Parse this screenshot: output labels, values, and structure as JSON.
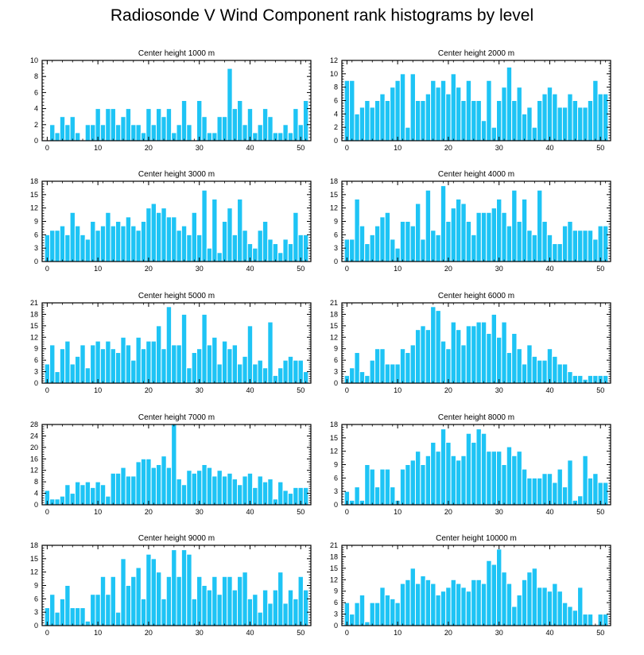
{
  "title": "Radiosonde V Wind Component rank histograms by level",
  "colors": {
    "bar": "#1ec4f5",
    "bar_edge": "#ffffff",
    "axis": "#000000"
  },
  "chart_data": [
    {
      "type": "bar",
      "title": "Center height 1000 m",
      "ylim": [
        0,
        10
      ],
      "yticks": [
        0,
        2,
        4,
        6,
        8,
        10
      ],
      "xlim": [
        -1,
        52
      ],
      "xticks": [
        0,
        10,
        20,
        30,
        40,
        50
      ],
      "x_start": 0,
      "values": [
        0,
        2,
        1,
        3,
        2,
        3,
        1,
        0,
        2,
        2,
        4,
        2,
        4,
        4,
        2,
        3,
        4,
        2,
        2,
        1,
        4,
        2,
        4,
        3,
        4,
        1,
        2,
        5,
        2,
        0,
        5,
        3,
        1,
        1,
        3,
        3,
        9,
        4,
        5,
        2,
        4,
        1,
        2,
        4,
        3,
        1,
        1,
        2,
        1,
        4,
        2,
        5
      ]
    },
    {
      "type": "bar",
      "title": "Center height 2000 m",
      "ylim": [
        0,
        12
      ],
      "yticks": [
        0,
        2,
        4,
        6,
        8,
        10,
        12
      ],
      "xlim": [
        -1,
        52
      ],
      "xticks": [
        0,
        10,
        20,
        30,
        40,
        50
      ],
      "x_start": 0,
      "values": [
        9,
        9,
        4,
        5,
        6,
        5,
        6,
        7,
        6,
        8,
        9,
        10,
        2,
        10,
        6,
        6,
        7,
        9,
        8,
        9,
        7,
        10,
        8,
        6,
        9,
        6,
        6,
        3,
        9,
        2,
        6,
        8,
        11,
        6,
        8,
        4,
        5,
        2,
        6,
        7,
        8,
        7,
        5,
        5,
        7,
        6,
        5,
        5,
        6,
        9,
        7,
        7
      ]
    },
    {
      "type": "bar",
      "title": "Center height 3000 m",
      "ylim": [
        0,
        18
      ],
      "yticks": [
        0,
        3,
        6,
        9,
        12,
        15,
        18
      ],
      "xlim": [
        -1,
        52
      ],
      "xticks": [
        0,
        10,
        20,
        30,
        40,
        50
      ],
      "x_start": 0,
      "values": [
        6,
        7,
        7,
        8,
        6,
        11,
        8,
        6,
        5,
        9,
        7,
        8,
        11,
        8,
        9,
        8,
        10,
        8,
        7,
        9,
        12,
        13,
        11,
        12,
        10,
        10,
        7,
        8,
        6,
        11,
        6,
        16,
        3,
        14,
        2,
        9,
        12,
        6,
        14,
        7,
        4,
        3,
        7,
        9,
        5,
        4,
        2,
        5,
        4,
        11,
        6,
        6
      ]
    },
    {
      "type": "bar",
      "title": "Center height 4000 m",
      "ylim": [
        0,
        18
      ],
      "yticks": [
        0,
        3,
        6,
        9,
        12,
        15,
        18
      ],
      "xlim": [
        -1,
        52
      ],
      "xticks": [
        0,
        10,
        20,
        30,
        40,
        50
      ],
      "x_start": 0,
      "values": [
        5,
        5,
        14,
        8,
        4,
        6,
        8,
        10,
        11,
        5,
        3,
        9,
        9,
        8,
        13,
        5,
        16,
        7,
        6,
        17,
        9,
        12,
        14,
        13,
        9,
        6,
        11,
        11,
        11,
        12,
        14,
        11,
        8,
        16,
        9,
        14,
        7,
        6,
        16,
        9,
        6,
        4,
        4,
        8,
        9,
        7,
        7,
        7,
        7,
        5,
        8,
        8
      ]
    },
    {
      "type": "bar",
      "title": "Center height 5000 m",
      "ylim": [
        0,
        21
      ],
      "yticks": [
        0,
        3,
        6,
        9,
        12,
        15,
        18,
        21
      ],
      "xlim": [
        -1,
        52
      ],
      "xticks": [
        0,
        10,
        20,
        30,
        40,
        50
      ],
      "x_start": 0,
      "values": [
        5,
        10,
        3,
        9,
        11,
        5,
        7,
        10,
        4,
        10,
        11,
        9,
        11,
        9,
        8,
        12,
        10,
        6,
        12,
        9,
        11,
        11,
        15,
        9,
        20,
        10,
        10,
        18,
        4,
        8,
        9,
        18,
        10,
        12,
        5,
        11,
        9,
        10,
        5,
        7,
        15,
        5,
        6,
        4,
        16,
        2,
        4,
        6,
        7,
        6,
        6,
        3
      ]
    },
    {
      "type": "bar",
      "title": "Center height 6000 m",
      "ylim": [
        0,
        21
      ],
      "yticks": [
        0,
        3,
        6,
        9,
        12,
        15,
        18,
        21
      ],
      "xlim": [
        -1,
        52
      ],
      "xticks": [
        0,
        10,
        20,
        30,
        40,
        50
      ],
      "x_start": 0,
      "values": [
        2,
        4,
        8,
        3,
        2,
        6,
        9,
        9,
        5,
        5,
        5,
        9,
        8,
        10,
        14,
        15,
        14,
        20,
        19,
        11,
        9,
        16,
        14,
        10,
        15,
        15,
        16,
        16,
        13,
        18,
        12,
        16,
        8,
        13,
        9,
        5,
        10,
        7,
        6,
        6,
        9,
        7,
        5,
        5,
        3,
        2,
        2,
        1,
        2,
        2,
        2,
        2
      ]
    },
    {
      "type": "bar",
      "title": "Center height 7000 m",
      "ylim": [
        0,
        28
      ],
      "yticks": [
        0,
        4,
        8,
        12,
        16,
        20,
        24,
        28
      ],
      "xlim": [
        -1,
        52
      ],
      "xticks": [
        0,
        10,
        20,
        30,
        40,
        50
      ],
      "x_start": 0,
      "values": [
        5,
        2,
        2,
        3,
        7,
        4,
        8,
        7,
        8,
        6,
        8,
        7,
        3,
        11,
        11,
        13,
        10,
        10,
        15,
        16,
        16,
        13,
        14,
        17,
        13,
        28,
        9,
        7,
        12,
        11,
        12,
        14,
        13,
        10,
        12,
        10,
        11,
        9,
        7,
        10,
        11,
        6,
        10,
        8,
        9,
        2,
        8,
        5,
        4,
        6,
        6,
        6
      ]
    },
    {
      "type": "bar",
      "title": "Center height 8000 m",
      "ylim": [
        0,
        18
      ],
      "yticks": [
        0,
        3,
        6,
        9,
        12,
        15,
        18
      ],
      "xlim": [
        -1,
        52
      ],
      "xticks": [
        0,
        10,
        20,
        30,
        40,
        50
      ],
      "x_start": 0,
      "values": [
        3,
        1,
        4,
        1,
        9,
        8,
        4,
        8,
        8,
        4,
        1,
        8,
        9,
        10,
        12,
        9,
        11,
        14,
        12,
        17,
        14,
        11,
        10,
        11,
        16,
        14,
        17,
        16,
        12,
        12,
        12,
        9,
        13,
        11,
        12,
        8,
        6,
        6,
        6,
        7,
        7,
        5,
        8,
        4,
        10,
        1,
        2,
        11,
        6,
        7,
        5,
        5
      ]
    },
    {
      "type": "bar",
      "title": "Center height 9000 m",
      "ylim": [
        0,
        18
      ],
      "yticks": [
        0,
        3,
        6,
        9,
        12,
        15,
        18
      ],
      "xlim": [
        -1,
        52
      ],
      "xticks": [
        0,
        10,
        20,
        30,
        40,
        50
      ],
      "x_start": 0,
      "values": [
        4,
        7,
        3,
        6,
        9,
        4,
        4,
        4,
        1,
        7,
        7,
        11,
        7,
        11,
        3,
        15,
        9,
        11,
        13,
        6,
        16,
        15,
        12,
        6,
        11,
        17,
        11,
        17,
        16,
        6,
        11,
        9,
        8,
        11,
        7,
        11,
        11,
        8,
        11,
        12,
        6,
        7,
        3,
        8,
        5,
        8,
        12,
        5,
        8,
        6,
        11,
        8
      ]
    },
    {
      "type": "bar",
      "title": "Center height 10000 m",
      "ylim": [
        0,
        21
      ],
      "yticks": [
        0,
        3,
        6,
        9,
        12,
        15,
        18,
        21
      ],
      "xlim": [
        -1,
        52
      ],
      "xticks": [
        0,
        10,
        20,
        30,
        40,
        50
      ],
      "x_start": 0,
      "values": [
        6,
        3,
        6,
        8,
        1,
        6,
        6,
        10,
        8,
        7,
        6,
        11,
        12,
        15,
        11,
        13,
        12,
        11,
        8,
        9,
        10,
        12,
        11,
        10,
        9,
        12,
        12,
        11,
        17,
        16,
        20,
        14,
        11,
        5,
        8,
        12,
        14,
        15,
        10,
        10,
        9,
        11,
        9,
        6,
        5,
        4,
        10,
        3,
        3,
        0,
        3,
        3
      ]
    }
  ]
}
